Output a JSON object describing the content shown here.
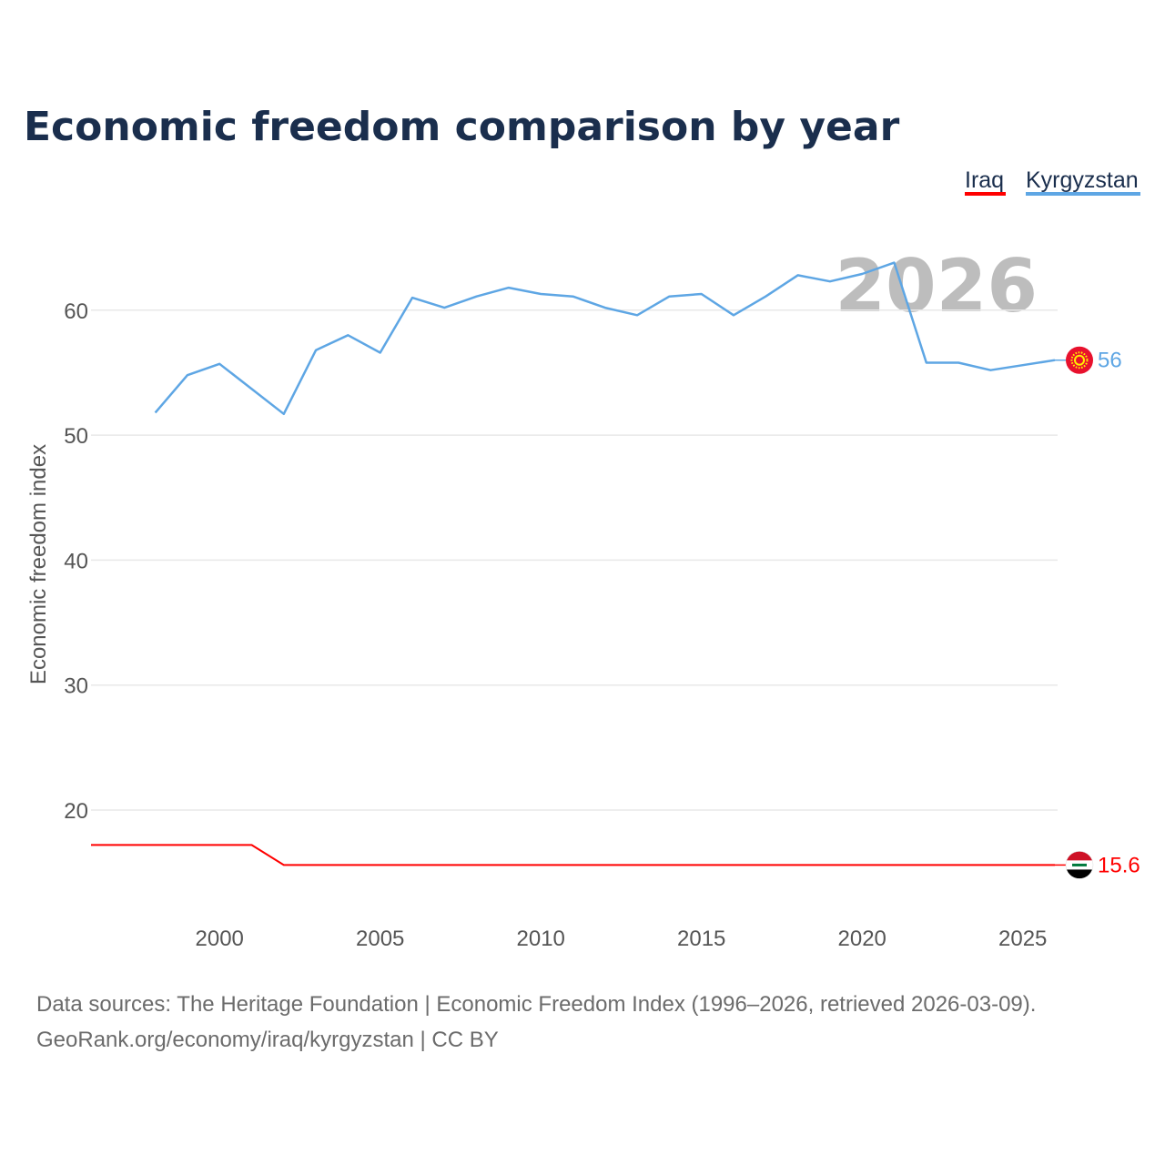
{
  "chart_data": {
    "type": "line",
    "title": "Economic freedom comparison by year",
    "xlabel": "",
    "ylabel": "Economic freedom index",
    "xlim": [
      1996,
      2026
    ],
    "ylim": [
      12,
      65
    ],
    "yticks": [
      20,
      30,
      40,
      50,
      60
    ],
    "xticks": [
      2000,
      2005,
      2010,
      2015,
      2020,
      2025
    ],
    "current_year": "2026",
    "series": [
      {
        "name": "Iraq",
        "color": "#ff0000",
        "end_label": "15.6",
        "flag_icon": "iraq-flag-icon",
        "x": [
          1996,
          1997,
          1998,
          1999,
          2000,
          2001,
          2002,
          2003,
          2004,
          2005,
          2006,
          2007,
          2008,
          2009,
          2010,
          2011,
          2012,
          2013,
          2014,
          2015,
          2016,
          2017,
          2018,
          2019,
          2020,
          2021,
          2022,
          2023,
          2024,
          2025,
          2026
        ],
        "values": [
          17.2,
          17.2,
          17.2,
          17.2,
          17.2,
          17.2,
          15.6,
          15.6,
          15.6,
          15.6,
          15.6,
          15.6,
          15.6,
          15.6,
          15.6,
          15.6,
          15.6,
          15.6,
          15.6,
          15.6,
          15.6,
          15.6,
          15.6,
          15.6,
          15.6,
          15.6,
          15.6,
          15.6,
          15.6,
          15.6,
          15.6
        ]
      },
      {
        "name": "Kyrgyzstan",
        "color": "#5ea6e4",
        "end_label": "56",
        "flag_icon": "kyrgyzstan-flag-icon",
        "x": [
          1998,
          1999,
          2000,
          2002,
          2003,
          2004,
          2005,
          2006,
          2007,
          2008,
          2009,
          2010,
          2011,
          2012,
          2013,
          2014,
          2015,
          2016,
          2017,
          2018,
          2019,
          2020,
          2021,
          2022,
          2023,
          2024,
          2025,
          2026
        ],
        "values": [
          51.8,
          54.8,
          55.7,
          51.7,
          56.8,
          58.0,
          56.6,
          61.0,
          60.2,
          61.1,
          61.8,
          61.3,
          61.1,
          60.2,
          59.6,
          61.1,
          61.3,
          59.6,
          61.1,
          62.8,
          62.3,
          62.9,
          63.8,
          55.8,
          55.8,
          55.2,
          55.6,
          56.0
        ]
      }
    ]
  },
  "source": {
    "line1": "Data sources: The Heritage Foundation | Economic Freedom Index (1996–2026, retrieved 2026-03-09).",
    "line2": "GeoRank.org/economy/iraq/kyrgyzstan | CC BY"
  }
}
